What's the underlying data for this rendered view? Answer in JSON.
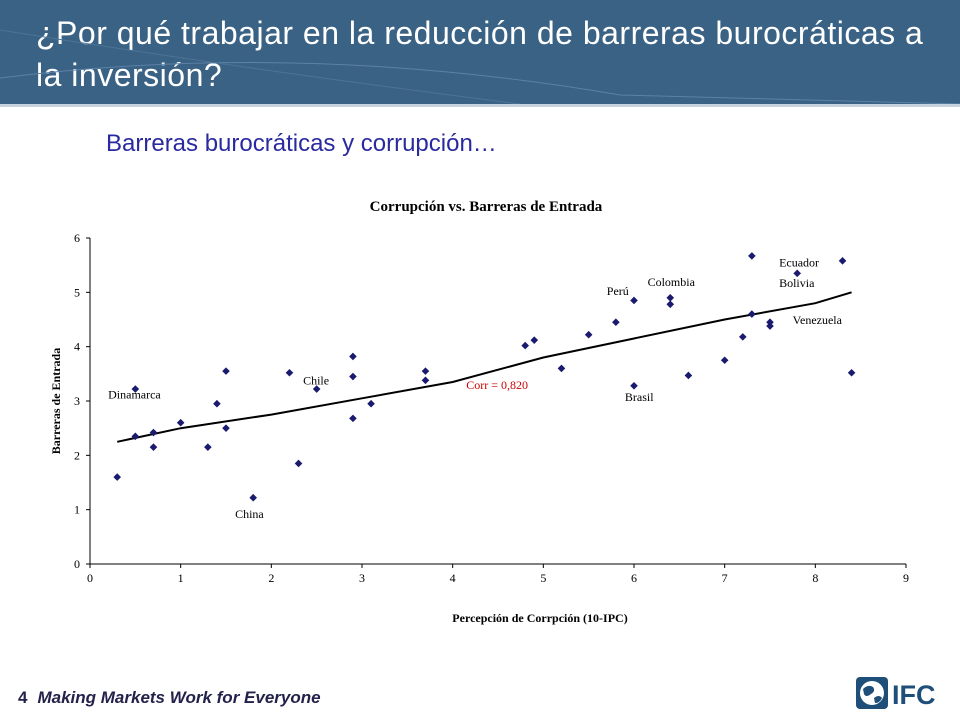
{
  "header": {
    "title": "¿Por qué trabajar en la reducción de barreras burocráticas a la inversión?"
  },
  "subtitle": "Barreras burocráticas y corrupción…",
  "footer": {
    "page_number": "4",
    "tagline": "Making Markets Work for Everyone",
    "logo_text": "IFC"
  },
  "chart_data": {
    "type": "scatter",
    "title": "Corrupción vs. Barreras de Entrada",
    "xlabel": "Percepción de Corrpción (10-IPC)",
    "ylabel": "Barreras de Entrada",
    "xlim": [
      0,
      9
    ],
    "ylim": [
      0,
      6
    ],
    "xticks": [
      "0",
      "1",
      "2",
      "3",
      "4",
      "5",
      "6",
      "7",
      "8",
      "9"
    ],
    "yticks": [
      "0",
      "1",
      "2",
      "3",
      "4",
      "5",
      "6"
    ],
    "grid": false,
    "colors": {
      "points": "#1a1a6e",
      "trend": "#000000",
      "corr": "#cc0000"
    },
    "points": [
      {
        "x": 0.3,
        "y": 1.6
      },
      {
        "x": 0.5,
        "y": 2.35
      },
      {
        "x": 0.5,
        "y": 3.22
      },
      {
        "x": 0.7,
        "y": 2.42
      },
      {
        "x": 0.7,
        "y": 2.15
      },
      {
        "x": 1.0,
        "y": 2.6
      },
      {
        "x": 1.3,
        "y": 2.15
      },
      {
        "x": 1.4,
        "y": 2.95
      },
      {
        "x": 1.5,
        "y": 3.55
      },
      {
        "x": 1.5,
        "y": 2.5
      },
      {
        "x": 1.8,
        "y": 1.22
      },
      {
        "x": 2.2,
        "y": 3.52
      },
      {
        "x": 2.3,
        "y": 1.85
      },
      {
        "x": 2.5,
        "y": 3.22
      },
      {
        "x": 2.9,
        "y": 3.82
      },
      {
        "x": 2.9,
        "y": 3.45
      },
      {
        "x": 2.9,
        "y": 2.68
      },
      {
        "x": 3.1,
        "y": 2.95
      },
      {
        "x": 3.7,
        "y": 3.55
      },
      {
        "x": 3.7,
        "y": 3.38
      },
      {
        "x": 4.8,
        "y": 4.02
      },
      {
        "x": 4.9,
        "y": 4.12
      },
      {
        "x": 5.2,
        "y": 3.6
      },
      {
        "x": 5.5,
        "y": 4.22
      },
      {
        "x": 5.8,
        "y": 4.45
      },
      {
        "x": 6.0,
        "y": 4.85
      },
      {
        "x": 6.0,
        "y": 3.28
      },
      {
        "x": 6.4,
        "y": 4.9
      },
      {
        "x": 6.4,
        "y": 4.78
      },
      {
        "x": 6.6,
        "y": 3.47
      },
      {
        "x": 7.0,
        "y": 3.75
      },
      {
        "x": 7.2,
        "y": 4.18
      },
      {
        "x": 7.3,
        "y": 5.67
      },
      {
        "x": 7.3,
        "y": 4.6
      },
      {
        "x": 7.5,
        "y": 4.45
      },
      {
        "x": 7.5,
        "y": 4.38
      },
      {
        "x": 7.8,
        "y": 5.35
      },
      {
        "x": 8.3,
        "y": 5.58
      },
      {
        "x": 8.4,
        "y": 3.52
      }
    ],
    "trendline": [
      {
        "x": 0.3,
        "y": 2.25
      },
      {
        "x": 1.0,
        "y": 2.5
      },
      {
        "x": 2.0,
        "y": 2.75
      },
      {
        "x": 3.0,
        "y": 3.05
      },
      {
        "x": 4.0,
        "y": 3.35
      },
      {
        "x": 5.0,
        "y": 3.8
      },
      {
        "x": 6.0,
        "y": 4.15
      },
      {
        "x": 7.0,
        "y": 4.5
      },
      {
        "x": 8.0,
        "y": 4.8
      },
      {
        "x": 8.4,
        "y": 5.0
      }
    ],
    "annotations": [
      {
        "text": "Dinamarca",
        "x": 0.2,
        "y": 3.05,
        "anchor": "start"
      },
      {
        "text": "Chile",
        "x": 2.35,
        "y": 3.3,
        "anchor": "start"
      },
      {
        "text": "China",
        "x": 1.6,
        "y": 0.85,
        "anchor": "start"
      },
      {
        "text": "Perú",
        "x": 5.7,
        "y": 4.95,
        "anchor": "start"
      },
      {
        "text": "Colombia",
        "x": 6.15,
        "y": 5.12,
        "anchor": "start"
      },
      {
        "text": "Brasil",
        "x": 5.9,
        "y": 3.0,
        "anchor": "start"
      },
      {
        "text": "Ecuador",
        "x": 7.6,
        "y": 5.48,
        "anchor": "start"
      },
      {
        "text": "Bolivia",
        "x": 7.6,
        "y": 5.1,
        "anchor": "start"
      },
      {
        "text": "Venezuela",
        "x": 7.75,
        "y": 4.42,
        "anchor": "start"
      }
    ],
    "corr_label": {
      "text": "Corr = 0,820",
      "x": 4.15,
      "y": 3.22
    }
  }
}
